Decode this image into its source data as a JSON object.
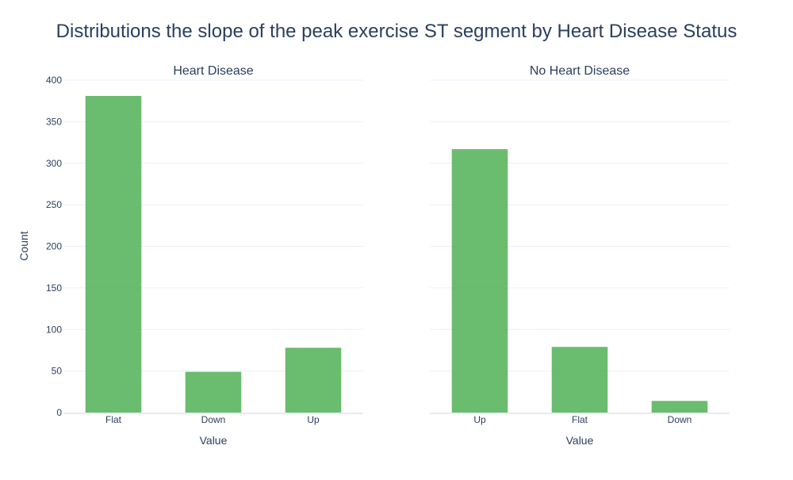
{
  "chart_title": "Distributions the slope of the peak exercise ST segment by Heart Disease Status",
  "y_axis_title": "Count",
  "bar_color": "#4caf50",
  "chart_data": [
    {
      "type": "bar",
      "title": "Heart Disease",
      "categories": [
        "Flat",
        "Down",
        "Up"
      ],
      "values": [
        381,
        49,
        78
      ],
      "xlabel": "Value",
      "ylabel": "Count",
      "ylim": [
        0,
        400
      ],
      "yticks": [
        0,
        50,
        100,
        150,
        200,
        250,
        300,
        350,
        400
      ],
      "grid": true
    },
    {
      "type": "bar",
      "title": "No Heart Disease",
      "categories": [
        "Up",
        "Flat",
        "Down"
      ],
      "values": [
        317,
        79,
        14
      ],
      "xlabel": "Value",
      "ylabel": "",
      "ylim": [
        0,
        400
      ],
      "grid": true
    }
  ]
}
